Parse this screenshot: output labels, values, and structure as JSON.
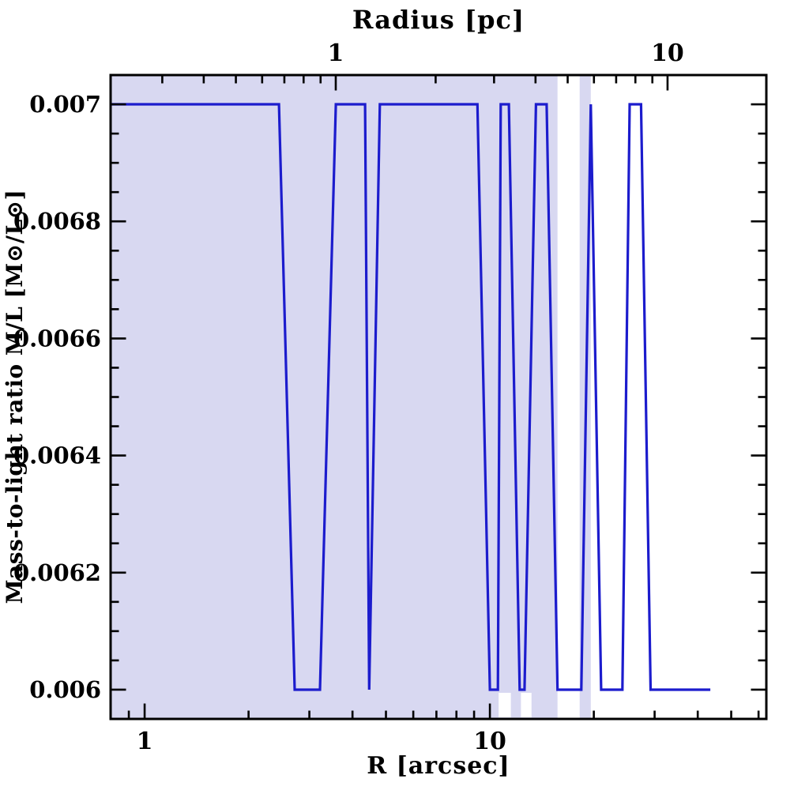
{
  "figure": {
    "background": "#ffffff"
  },
  "chart_data": {
    "type": "line",
    "title": "",
    "xlabel": "R [arcsec]",
    "ylabel": "Mass-to-light ratio M/L [M⊙/L⊙]",
    "x_scale": "log",
    "xlim": [
      0.797,
      63.2
    ],
    "ylim": [
      0.00595,
      0.00705
    ],
    "grid": false,
    "legend": "none",
    "x_axis": {
      "major_ticks": [
        1,
        10
      ],
      "major_labels": [
        "1",
        "10"
      ],
      "minor_ticks": [
        0.9,
        2,
        3,
        4,
        5,
        6,
        7,
        8,
        9,
        20,
        30,
        40,
        50,
        60
      ]
    },
    "top_axis": {
      "label": "Radius [pc]",
      "lim": [
        0.2096,
        19.85
      ],
      "major_ticks": [
        1,
        10
      ],
      "major_labels": [
        "1",
        "10"
      ],
      "minor_ticks": [
        0.3,
        0.4,
        0.5,
        0.6,
        0.7,
        0.8,
        0.9,
        2,
        3,
        4,
        5,
        6,
        7,
        8,
        9
      ]
    },
    "y_axis": {
      "major_ticks": [
        0.006,
        0.0062,
        0.0064,
        0.0066,
        0.0068,
        0.007
      ],
      "major_labels": [
        "0.006",
        "0.0062",
        "0.0064",
        "0.0066",
        "0.0068",
        "0.007"
      ],
      "minor_step": 5e-05
    },
    "series": [
      {
        "name": "mass-to-light-ratio-profile",
        "color": "#1c1ccd",
        "x": [
          0.8,
          2.45,
          2.72,
          3.22,
          3.58,
          4.35,
          4.47,
          4.8,
          9.2,
          10.0,
          10.55,
          10.75,
          11.35,
          12.2,
          12.6,
          13.6,
          14.6,
          15.7,
          18.4,
          19.6,
          21.0,
          24.2,
          25.4,
          27.4,
          29.2,
          43.5
        ],
        "y": [
          0.007,
          0.007,
          0.006,
          0.006,
          0.007,
          0.007,
          0.006,
          0.007,
          0.007,
          0.006,
          0.006,
          0.007,
          0.007,
          0.006,
          0.006,
          0.007,
          0.007,
          0.006,
          0.006,
          0.007,
          0.006,
          0.006,
          0.007,
          0.007,
          0.006,
          0.006
        ]
      }
    ],
    "shade": {
      "color": "#d8d8f1",
      "bands": [
        {
          "x1": 0.797,
          "x2": 15.7
        },
        {
          "x1": 18.2,
          "x2": 19.6
        }
      ],
      "white_notches": [
        {
          "x1": 10.6,
          "x2": 11.5,
          "y_top": 0.006
        },
        {
          "x1": 12.3,
          "x2": 13.2,
          "y_top": 0.006
        }
      ]
    },
    "frame_color": "#000000"
  }
}
